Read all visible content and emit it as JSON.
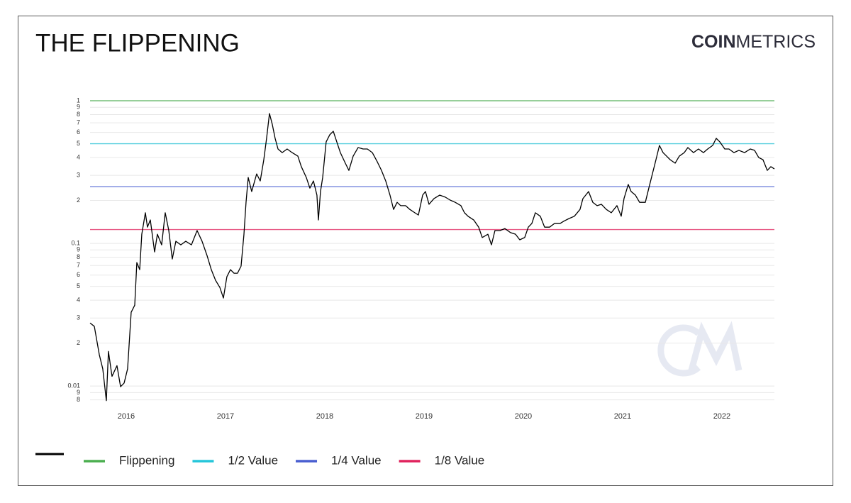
{
  "chart_data": {
    "type": "line",
    "title": "THE FLIPPENING",
    "brand": {
      "bold": "COIN",
      "light": "METRICS"
    },
    "log_y": true,
    "grid": true,
    "xlim": [
      2015.636,
      2022.529
    ],
    "xticks": [
      2016,
      2017,
      2018,
      2019,
      2020,
      2021,
      2022
    ],
    "ylim": [
      0.0077,
      1
    ],
    "yticks": [
      1,
      {
        "value": 0.9,
        "label": "9"
      },
      {
        "value": 0.8,
        "label": "8"
      },
      {
        "value": 0.7,
        "label": "7"
      },
      {
        "value": 0.6,
        "label": "6"
      },
      {
        "value": 0.5,
        "label": "5"
      },
      {
        "value": 0.4,
        "label": "4"
      },
      {
        "value": 0.3,
        "label": "3"
      },
      {
        "value": 0.2,
        "label": "2"
      },
      0.1,
      {
        "value": 0.09,
        "label": "9"
      },
      {
        "value": 0.08,
        "label": "8"
      },
      {
        "value": 0.07,
        "label": "7"
      },
      {
        "value": 0.06,
        "label": "6"
      },
      {
        "value": 0.05,
        "label": "5"
      },
      {
        "value": 0.04,
        "label": "4"
      },
      {
        "value": 0.03,
        "label": "3"
      },
      {
        "value": 0.02,
        "label": "2"
      },
      0.01,
      {
        "value": 0.009,
        "label": "9"
      },
      {
        "value": 0.008,
        "label": "8"
      }
    ],
    "x": [
      2015.636,
      2015.679,
      2015.729,
      2015.764,
      2015.8,
      2015.821,
      2015.857,
      2015.907,
      2015.943,
      2015.979,
      2016.014,
      2016.05,
      2016.086,
      2016.107,
      2016.136,
      2016.157,
      2016.193,
      2016.214,
      2016.243,
      2016.286,
      2016.314,
      2016.357,
      2016.393,
      2016.429,
      2016.464,
      2016.5,
      2016.55,
      2016.6,
      2016.657,
      2016.714,
      2016.764,
      2016.814,
      2016.857,
      2016.9,
      2016.943,
      2016.979,
      2017.014,
      2017.05,
      2017.086,
      2017.121,
      2017.157,
      2017.186,
      2017.207,
      2017.229,
      2017.264,
      2017.314,
      2017.35,
      2017.386,
      2017.414,
      2017.443,
      2017.471,
      2017.5,
      2017.529,
      2017.571,
      2017.621,
      2017.671,
      2017.729,
      2017.764,
      2017.814,
      2017.85,
      2017.886,
      2017.921,
      2017.936,
      2017.957,
      2017.979,
      2018.014,
      2018.05,
      2018.086,
      2018.121,
      2018.157,
      2018.207,
      2018.243,
      2018.286,
      2018.336,
      2018.386,
      2018.429,
      2018.479,
      2018.529,
      2018.571,
      2018.614,
      2018.657,
      2018.693,
      2018.729,
      2018.764,
      2018.814,
      2018.857,
      2018.907,
      2018.943,
      2018.986,
      2019.014,
      2019.05,
      2019.1,
      2019.157,
      2019.214,
      2019.264,
      2019.314,
      2019.371,
      2019.407,
      2019.443,
      2019.5,
      2019.55,
      2019.586,
      2019.643,
      2019.679,
      2019.714,
      2019.764,
      2019.814,
      2019.871,
      2019.921,
      2019.964,
      2020.014,
      2020.05,
      2020.086,
      2020.121,
      2020.171,
      2020.214,
      2020.264,
      2020.314,
      2020.371,
      2020.407,
      2020.457,
      2020.514,
      2020.571,
      2020.6,
      2020.657,
      2020.7,
      2020.743,
      2020.786,
      2020.836,
      2020.886,
      2020.943,
      2020.986,
      2021.014,
      2021.057,
      2021.086,
      2021.129,
      2021.171,
      2021.229,
      2021.264,
      2021.3,
      2021.336,
      2021.371,
      2021.407,
      2021.443,
      2021.479,
      2021.529,
      2021.571,
      2021.621,
      2021.657,
      2021.714,
      2021.764,
      2021.814,
      2021.857,
      2021.907,
      2021.943,
      2021.979,
      2022.029,
      2022.071,
      2022.121,
      2022.171,
      2022.229,
      2022.286,
      2022.329,
      2022.371,
      2022.414,
      2022.457,
      2022.493,
      2022.529
    ],
    "series": [
      {
        "color": "#000000",
        "values": [
          0.0277,
          0.0262,
          0.0166,
          0.0132,
          0.0079,
          0.0175,
          0.0117,
          0.0139,
          0.0099,
          0.0105,
          0.0132,
          0.0329,
          0.0369,
          0.0734,
          0.0655,
          0.116,
          0.164,
          0.13,
          0.146,
          0.0871,
          0.116,
          0.0977,
          0.164,
          0.123,
          0.0777,
          0.1035,
          0.0977,
          0.1035,
          0.0977,
          0.123,
          0.1035,
          0.0823,
          0.0655,
          0.0551,
          0.0492,
          0.0414,
          0.0584,
          0.0655,
          0.0618,
          0.0618,
          0.0693,
          0.116,
          0.194,
          0.29,
          0.231,
          0.307,
          0.274,
          0.386,
          0.545,
          0.814,
          0.685,
          0.545,
          0.459,
          0.433,
          0.459,
          0.433,
          0.409,
          0.345,
          0.29,
          0.244,
          0.274,
          0.218,
          0.146,
          0.231,
          0.29,
          0.515,
          0.577,
          0.611,
          0.515,
          0.433,
          0.365,
          0.325,
          0.409,
          0.47,
          0.459,
          0.459,
          0.433,
          0.373,
          0.325,
          0.274,
          0.218,
          0.173,
          0.194,
          0.184,
          0.184,
          0.173,
          0.164,
          0.158,
          0.218,
          0.231,
          0.188,
          0.206,
          0.218,
          0.211,
          0.201,
          0.194,
          0.184,
          0.164,
          0.155,
          0.146,
          0.13,
          0.11,
          0.116,
          0.0977,
          0.123,
          0.123,
          0.127,
          0.119,
          0.116,
          0.106,
          0.11,
          0.13,
          0.138,
          0.164,
          0.155,
          0.13,
          0.13,
          0.138,
          0.138,
          0.143,
          0.149,
          0.155,
          0.173,
          0.206,
          0.231,
          0.194,
          0.184,
          0.188,
          0.173,
          0.164,
          0.184,
          0.155,
          0.206,
          0.259,
          0.231,
          0.218,
          0.194,
          0.194,
          0.244,
          0.307,
          0.386,
          0.486,
          0.433,
          0.409,
          0.386,
          0.365,
          0.409,
          0.433,
          0.47,
          0.433,
          0.459,
          0.433,
          0.459,
          0.486,
          0.545,
          0.515,
          0.459,
          0.459,
          0.433,
          0.449,
          0.433,
          0.459,
          0.449,
          0.4,
          0.386,
          0.325,
          0.345,
          0.333
        ]
      }
    ],
    "reference_lines": [
      {
        "name": "Flippening",
        "value": 1,
        "color": "#4caf50"
      },
      {
        "name": "1/2 Value",
        "value": 0.5,
        "color": "#26c6da"
      },
      {
        "name": "1/4 Value",
        "value": 0.25,
        "color": "#4a5fd1"
      },
      {
        "name": "1/8 Value",
        "value": 0.125,
        "color": "#e0245e"
      }
    ]
  }
}
